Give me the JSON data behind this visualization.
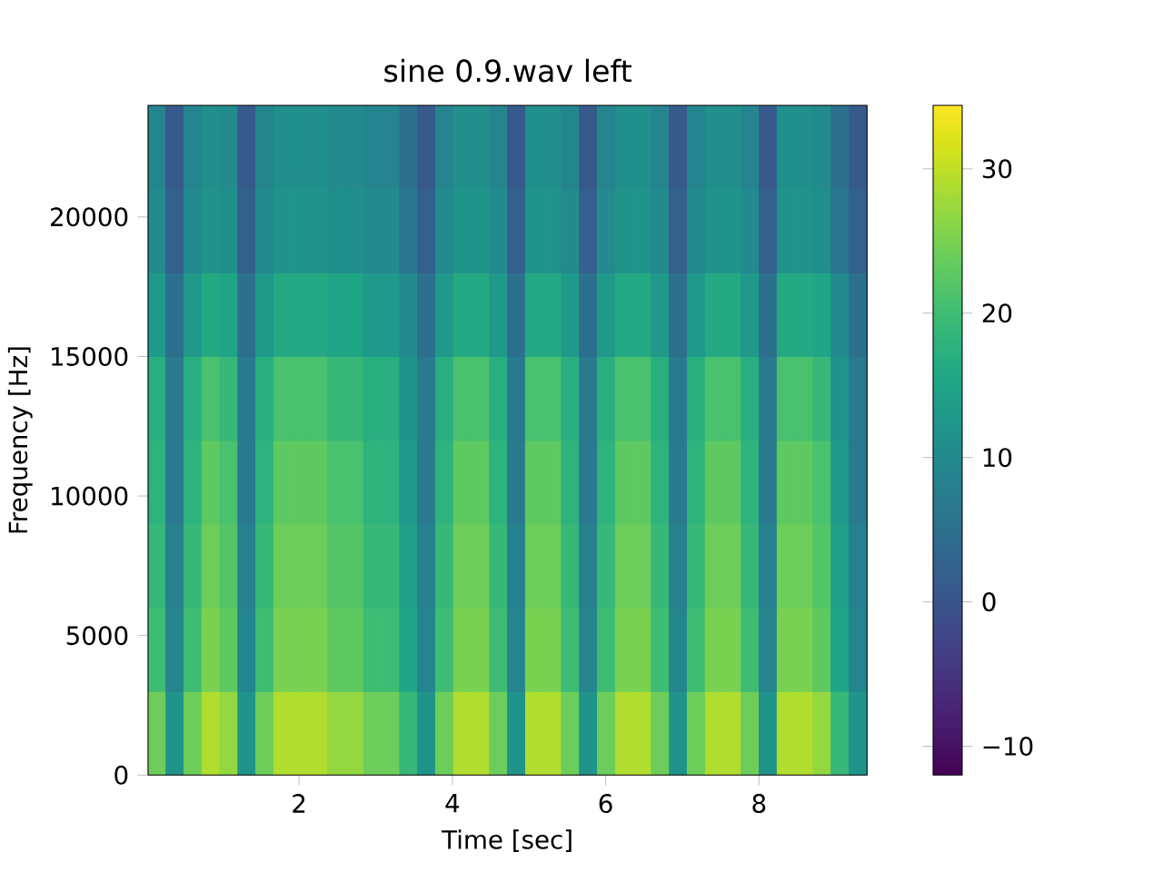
{
  "chart_data": {
    "type": "heatmap",
    "title": "sine 0.9.wav left",
    "xlabel": "Time [sec]",
    "ylabel": "Frequency [Hz]",
    "cells": [
      [
        9,
        1,
        9,
        11,
        10,
        1,
        9,
        11,
        11,
        11,
        10,
        10,
        9,
        9,
        5,
        1,
        9,
        11,
        11,
        9,
        1,
        11,
        11,
        9,
        1,
        9,
        11,
        11,
        9,
        1,
        9,
        11,
        11,
        9,
        1,
        11,
        11,
        10,
        5,
        1
      ],
      [
        10,
        2,
        10,
        12,
        11,
        2,
        10,
        12,
        12,
        12,
        11,
        11,
        10,
        10,
        6,
        2,
        10,
        12,
        12,
        10,
        2,
        12,
        12,
        10,
        2,
        10,
        12,
        12,
        10,
        2,
        10,
        12,
        12,
        10,
        2,
        12,
        12,
        11,
        6,
        2
      ],
      [
        13,
        5,
        13,
        16,
        15,
        5,
        13,
        16,
        16,
        16,
        15,
        15,
        13,
        13,
        10,
        5,
        13,
        16,
        16,
        13,
        5,
        16,
        16,
        13,
        5,
        13,
        16,
        16,
        13,
        5,
        13,
        16,
        16,
        13,
        5,
        16,
        16,
        15,
        10,
        5
      ],
      [
        17,
        7,
        17,
        21,
        19,
        7,
        17,
        21,
        21,
        21,
        19,
        19,
        17,
        17,
        12,
        7,
        17,
        21,
        21,
        17,
        7,
        21,
        21,
        17,
        7,
        17,
        21,
        21,
        17,
        7,
        17,
        21,
        21,
        17,
        7,
        21,
        21,
        19,
        12,
        7
      ],
      [
        18,
        7,
        18,
        23,
        21,
        7,
        18,
        23,
        23,
        23,
        21,
        21,
        18,
        18,
        13,
        7,
        18,
        23,
        23,
        18,
        7,
        23,
        23,
        18,
        7,
        18,
        23,
        23,
        18,
        7,
        18,
        23,
        23,
        18,
        7,
        23,
        23,
        21,
        13,
        7
      ],
      [
        19,
        8,
        19,
        24,
        22,
        8,
        19,
        24,
        24,
        24,
        22,
        22,
        19,
        19,
        14,
        8,
        19,
        24,
        24,
        19,
        8,
        24,
        24,
        19,
        8,
        19,
        24,
        24,
        19,
        8,
        19,
        24,
        24,
        19,
        8,
        24,
        24,
        22,
        14,
        8
      ],
      [
        20,
        9,
        20,
        25,
        23,
        9,
        20,
        25,
        25,
        25,
        23,
        23,
        20,
        20,
        15,
        9,
        20,
        25,
        25,
        20,
        9,
        25,
        25,
        20,
        9,
        20,
        25,
        25,
        20,
        9,
        20,
        25,
        25,
        20,
        9,
        25,
        25,
        23,
        15,
        9
      ],
      [
        24,
        12,
        24,
        29,
        27,
        12,
        24,
        29,
        29,
        29,
        27,
        27,
        24,
        24,
        19,
        12,
        24,
        29,
        29,
        24,
        12,
        29,
        29,
        24,
        12,
        24,
        29,
        29,
        24,
        12,
        24,
        29,
        29,
        24,
        12,
        29,
        29,
        27,
        19,
        12
      ]
    ],
    "xlim": [
      0.03,
      9.41
    ],
    "ylim": [
      0,
      24000
    ],
    "xticks": [
      2,
      4,
      6,
      8
    ],
    "yticks": [
      0,
      5000,
      10000,
      15000,
      20000
    ],
    "clim": [
      -12,
      34.4
    ],
    "cticks": [
      {
        "value": -10,
        "label": "−10"
      },
      0,
      10,
      20,
      30
    ]
  }
}
